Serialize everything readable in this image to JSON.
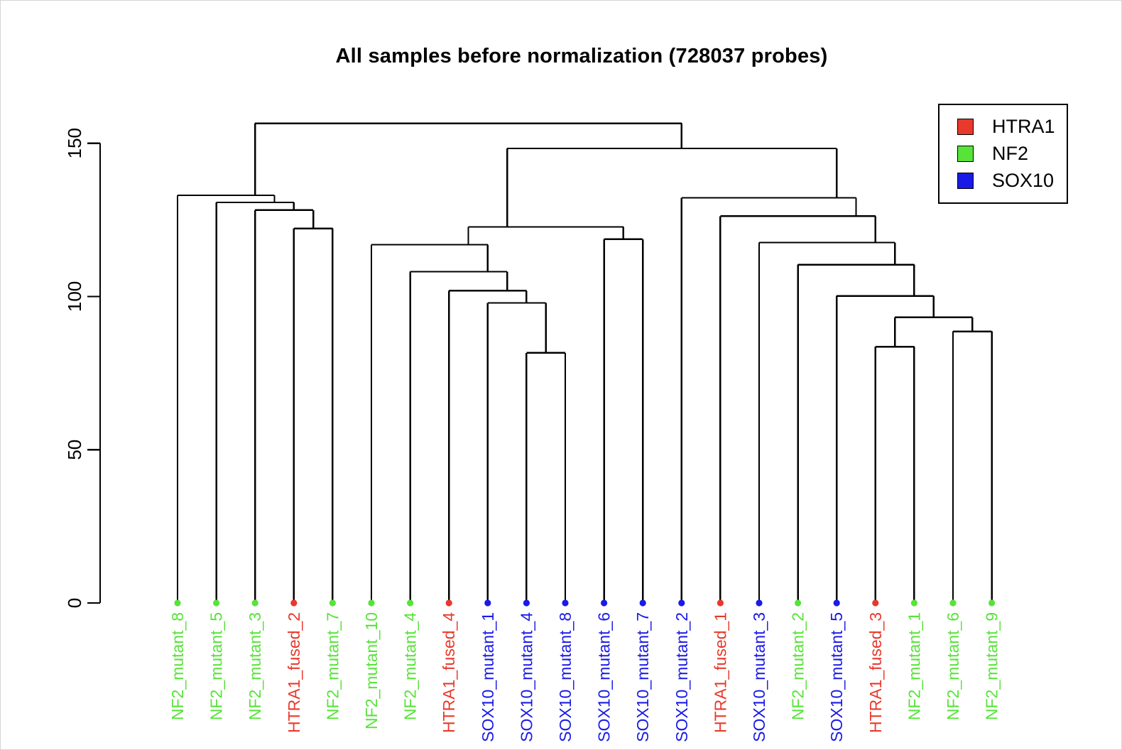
{
  "chart_data": {
    "type": "dendrogram",
    "title": "All samples before normalization (728037 probes)",
    "ylabel": "",
    "yticks": [
      0,
      50,
      100,
      150
    ],
    "ylim": [
      0,
      156.5
    ],
    "grid": false,
    "legend_position": "top-right",
    "leaf_dot": true,
    "leaves": [
      {
        "label": "NF2_mutant_8",
        "group": "NF2"
      },
      {
        "label": "NF2_mutant_5",
        "group": "NF2"
      },
      {
        "label": "NF2_mutant_3",
        "group": "NF2"
      },
      {
        "label": "HTRA1_fused_2",
        "group": "HTRA1"
      },
      {
        "label": "NF2_mutant_7",
        "group": "NF2"
      },
      {
        "label": "NF2_mutant_10",
        "group": "NF2"
      },
      {
        "label": "NF2_mutant_4",
        "group": "NF2"
      },
      {
        "label": "HTRA1_fused_4",
        "group": "HTRA1"
      },
      {
        "label": "SOX10_mutant_1",
        "group": "SOX10"
      },
      {
        "label": "SOX10_mutant_4",
        "group": "SOX10"
      },
      {
        "label": "SOX10_mutant_8",
        "group": "SOX10"
      },
      {
        "label": "SOX10_mutant_6",
        "group": "SOX10"
      },
      {
        "label": "SOX10_mutant_7",
        "group": "SOX10"
      },
      {
        "label": "SOX10_mutant_2",
        "group": "SOX10"
      },
      {
        "label": "HTRA1_fused_1",
        "group": "HTRA1"
      },
      {
        "label": "SOX10_mutant_3",
        "group": "SOX10"
      },
      {
        "label": "NF2_mutant_2",
        "group": "NF2"
      },
      {
        "label": "SOX10_mutant_5",
        "group": "SOX10"
      },
      {
        "label": "HTRA1_fused_3",
        "group": "HTRA1"
      },
      {
        "label": "NF2_mutant_1",
        "group": "NF2"
      },
      {
        "label": "NF2_mutant_6",
        "group": "NF2"
      },
      {
        "label": "NF2_mutant_9",
        "group": "NF2"
      }
    ],
    "group_colors": {
      "HTRA1": "#e8392b",
      "NF2": "#57e339",
      "SOX10": "#1a1ae6"
    },
    "line_color": "#000000",
    "tree_format": "[merge_height, left_child, right_child]; integer = 1-based leaf index",
    "tree": [
      156.5,
      [
        133.0,
        1,
        [
          130.7,
          2,
          [
            128.2,
            3,
            [
              122.2,
              4,
              5
            ]
          ]
        ]
      ],
      [
        148.3,
        [
          122.7,
          [
            116.9,
            6,
            [
              108.1,
              7,
              [
                101.9,
                8,
                [
                  97.9,
                  9,
                  [
                    81.6,
                    10,
                    11
                  ]
                ]
              ]
            ]
          ],
          [
            118.7,
            12,
            13
          ]
        ],
        [
          132.2,
          14,
          [
            126.2,
            15,
            [
              117.6,
              16,
              [
                110.4,
                17,
                [
                  100.2,
                  18,
                  [
                    93.2,
                    [
                      83.6,
                      19,
                      20
                    ],
                    [
                      88.6,
                      21,
                      22
                    ]
                  ]
                ]
              ]
            ]
          ]
        ]
      ]
    ]
  },
  "legend": {
    "items": [
      {
        "label": "HTRA1",
        "color": "#e8392b"
      },
      {
        "label": "NF2",
        "color": "#57e339"
      },
      {
        "label": "SOX10",
        "color": "#1a1ae6"
      }
    ]
  }
}
